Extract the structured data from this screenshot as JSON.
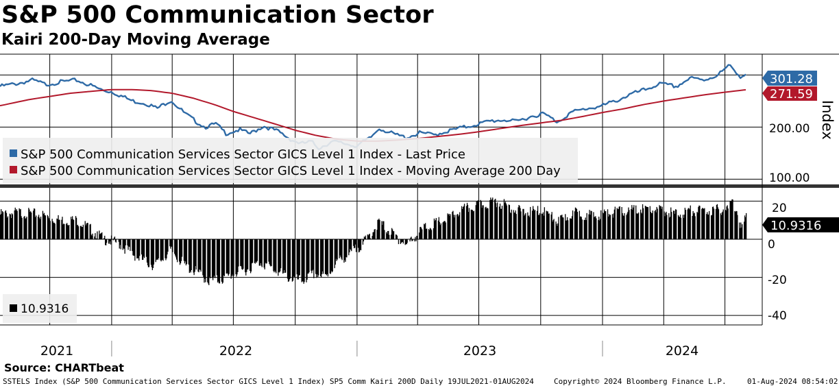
{
  "header": {
    "title": "S&P 500 Communication Sector",
    "subtitle": "Kairi 200-Day Moving Average"
  },
  "source": "Source: CHARTbeat",
  "footer": {
    "description": "SSTELS Index (S&P 500 Communication Services Sector GICS Level 1 Index) SP5 Comm Kairi 200D  Daily 19JUL2021-01AUG2024",
    "copyright": "Copyright© 2024 Bloomberg Finance L.P.",
    "timestamp": "01-Aug-2024 08:54:02"
  },
  "colors": {
    "price": "#2e6aa6",
    "ma": "#b2182b",
    "kairi": "#000000",
    "grid": "#000000"
  },
  "chart_data": [
    {
      "type": "line",
      "panel": "upper",
      "ylabel": "Index",
      "ylim": [
        90,
        340
      ],
      "yticks": [
        100.0,
        200.0
      ],
      "ytick_labels": [
        "100.00",
        "200.00"
      ],
      "xlabels": [
        "2021",
        "2022",
        "2023",
        "2024"
      ],
      "legend": [
        "S&P 500 Communication Services Sector GICS Level 1 Index - Last Price",
        "S&P 500 Communication Services Sector GICS Level 1 Index - Moving Average 200 Day"
      ],
      "last_labels": {
        "price": "301.28",
        "ma": "271.59"
      },
      "series": [
        {
          "name": "Last Price",
          "points": [
            [
              "2021-07-19",
              278
            ],
            [
              "2021-08-15",
              284
            ],
            [
              "2021-09-05",
              290
            ],
            [
              "2021-09-25",
              282
            ],
            [
              "2021-10-20",
              287
            ],
            [
              "2021-11-10",
              290
            ],
            [
              "2021-12-01",
              280
            ],
            [
              "2021-12-20",
              270
            ],
            [
              "2022-01-01",
              268
            ],
            [
              "2022-01-15",
              260
            ],
            [
              "2022-02-01",
              250
            ],
            [
              "2022-02-20",
              246
            ],
            [
              "2022-03-10",
              236
            ],
            [
              "2022-03-30",
              252
            ],
            [
              "2022-04-20",
              226
            ],
            [
              "2022-05-05",
              212
            ],
            [
              "2022-05-20",
              200
            ],
            [
              "2022-06-05",
              206
            ],
            [
              "2022-06-20",
              188
            ],
            [
              "2022-07-10",
              195
            ],
            [
              "2022-07-25",
              187
            ],
            [
              "2022-08-15",
              202
            ],
            [
              "2022-09-05",
              192
            ],
            [
              "2022-09-25",
              176
            ],
            [
              "2022-10-10",
              168
            ],
            [
              "2022-10-25",
              172
            ],
            [
              "2022-11-05",
              160
            ],
            [
              "2022-11-25",
              172
            ],
            [
              "2022-12-15",
              168
            ],
            [
              "2022-12-30",
              164
            ],
            [
              "2023-01-20",
              178
            ],
            [
              "2023-02-03",
              198
            ],
            [
              "2023-02-25",
              186
            ],
            [
              "2023-03-15",
              180
            ],
            [
              "2023-04-05",
              189
            ],
            [
              "2023-04-25",
              185
            ],
            [
              "2023-05-15",
              192
            ],
            [
              "2023-06-10",
              200
            ],
            [
              "2023-06-30",
              206
            ],
            [
              "2023-07-20",
              212
            ],
            [
              "2023-08-10",
              214
            ],
            [
              "2023-08-25",
              210
            ],
            [
              "2023-09-15",
              220
            ],
            [
              "2023-10-05",
              226
            ],
            [
              "2023-10-26",
              210
            ],
            [
              "2023-11-15",
              228
            ],
            [
              "2023-12-10",
              236
            ],
            [
              "2023-12-30",
              240
            ],
            [
              "2024-01-20",
              250
            ],
            [
              "2024-02-10",
              262
            ],
            [
              "2024-03-05",
              272
            ],
            [
              "2024-03-25",
              283
            ],
            [
              "2024-04-20",
              278
            ],
            [
              "2024-05-10",
              294
            ],
            [
              "2024-05-30",
              290
            ],
            [
              "2024-06-20",
              300
            ],
            [
              "2024-07-08",
              318
            ],
            [
              "2024-07-18",
              306
            ],
            [
              "2024-07-25",
              296
            ],
            [
              "2024-08-01",
              301.28
            ]
          ]
        },
        {
          "name": "Moving Average 200 Day",
          "points": [
            [
              "2021-07-19",
              241
            ],
            [
              "2021-09-01",
              253
            ],
            [
              "2021-11-01",
              265
            ],
            [
              "2021-12-31",
              272
            ],
            [
              "2022-02-01",
              272
            ],
            [
              "2022-03-01",
              270
            ],
            [
              "2022-04-01",
              265
            ],
            [
              "2022-05-01",
              256
            ],
            [
              "2022-06-01",
              244
            ],
            [
              "2022-07-01",
              230
            ],
            [
              "2022-08-01",
              218
            ],
            [
              "2022-09-01",
              206
            ],
            [
              "2022-10-01",
              194
            ],
            [
              "2022-11-01",
              184
            ],
            [
              "2022-12-01",
              177
            ],
            [
              "2023-01-01",
              173
            ],
            [
              "2023-02-01",
              173
            ],
            [
              "2023-03-01",
              175
            ],
            [
              "2023-04-01",
              178
            ],
            [
              "2023-05-01",
              182
            ],
            [
              "2023-06-01",
              186
            ],
            [
              "2023-07-01",
              191
            ],
            [
              "2023-08-01",
              197
            ],
            [
              "2023-09-01",
              203
            ],
            [
              "2023-10-01",
              208
            ],
            [
              "2023-11-01",
              213
            ],
            [
              "2023-12-01",
              220
            ],
            [
              "2024-01-01",
              228
            ],
            [
              "2024-02-01",
              235
            ],
            [
              "2024-03-01",
              243
            ],
            [
              "2024-04-01",
              250
            ],
            [
              "2024-05-01",
              256
            ],
            [
              "2024-06-01",
              262
            ],
            [
              "2024-07-01",
              267
            ],
            [
              "2024-08-01",
              271.59
            ]
          ]
        }
      ]
    },
    {
      "type": "bar",
      "panel": "lower",
      "name": "Kairi 200D",
      "ylim": [
        -45,
        27
      ],
      "yticks": [
        -40,
        -20,
        0,
        20
      ],
      "ytick_labels": [
        "-40",
        "-20",
        "0",
        "20"
      ],
      "last_label": "10.9316",
      "legend": [
        "10.9316"
      ],
      "points": [
        [
          "2021-07-19",
          13
        ],
        [
          "2021-08-15",
          14
        ],
        [
          "2021-09-15",
          13
        ],
        [
          "2021-10-15",
          10
        ],
        [
          "2021-11-10",
          10
        ],
        [
          "2021-12-01",
          5
        ],
        [
          "2021-12-20",
          0
        ],
        [
          "2022-01-10",
          -2
        ],
        [
          "2022-01-25",
          -6
        ],
        [
          "2022-02-10",
          -10
        ],
        [
          "2022-03-05",
          -14
        ],
        [
          "2022-03-30",
          -6
        ],
        [
          "2022-04-20",
          -14
        ],
        [
          "2022-05-10",
          -18
        ],
        [
          "2022-05-25",
          -22
        ],
        [
          "2022-06-15",
          -21
        ],
        [
          "2022-07-01",
          -18
        ],
        [
          "2022-07-20",
          -16
        ],
        [
          "2022-08-10",
          -12
        ],
        [
          "2022-08-25",
          -15
        ],
        [
          "2022-09-20",
          -20
        ],
        [
          "2022-10-10",
          -22
        ],
        [
          "2022-10-30",
          -18
        ],
        [
          "2022-11-15",
          -20
        ],
        [
          "2022-12-01",
          -12
        ],
        [
          "2022-12-20",
          -8
        ],
        [
          "2023-01-10",
          -2
        ],
        [
          "2023-02-02",
          9
        ],
        [
          "2023-02-25",
          2
        ],
        [
          "2023-03-15",
          -3
        ],
        [
          "2023-04-10",
          6
        ],
        [
          "2023-05-10",
          10
        ],
        [
          "2023-06-10",
          16
        ],
        [
          "2023-07-05",
          18
        ],
        [
          "2023-07-25",
          20
        ],
        [
          "2023-08-15",
          17
        ],
        [
          "2023-09-05",
          14
        ],
        [
          "2023-10-05",
          15
        ],
        [
          "2023-10-26",
          9
        ],
        [
          "2023-11-20",
          14
        ],
        [
          "2023-12-20",
          12
        ],
        [
          "2024-01-10",
          14
        ],
        [
          "2024-02-10",
          15
        ],
        [
          "2024-03-05",
          16
        ],
        [
          "2024-03-30",
          15
        ],
        [
          "2024-04-20",
          13
        ],
        [
          "2024-05-10",
          15
        ],
        [
          "2024-06-05",
          15
        ],
        [
          "2024-07-05",
          16
        ],
        [
          "2024-07-10",
          20
        ],
        [
          "2024-07-18",
          16
        ],
        [
          "2024-07-25",
          6
        ],
        [
          "2024-08-01",
          10.9316
        ]
      ]
    }
  ]
}
